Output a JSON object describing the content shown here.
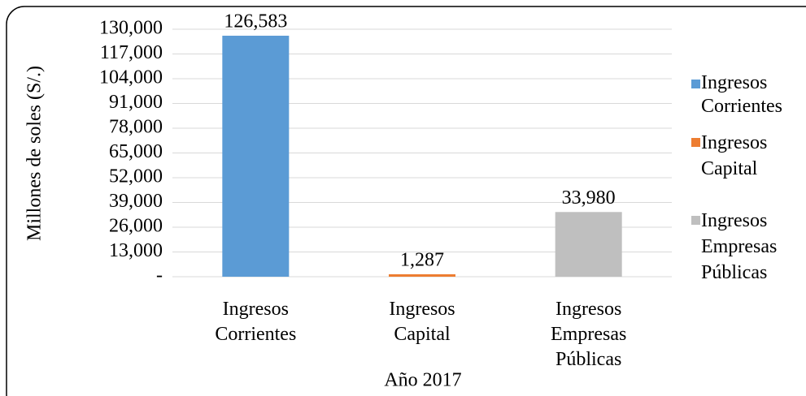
{
  "chart_data": {
    "type": "bar",
    "categories": [
      "Ingresos Corrientes",
      "Ingresos Capital",
      "Ingresos Empresas Públicas"
    ],
    "values": [
      126583,
      1287,
      33980
    ],
    "value_labels": [
      "126,583",
      "1,287",
      "33,980"
    ],
    "colors": [
      "#5b9bd5",
      "#ed7d31",
      "#bfbfbf"
    ],
    "xlabel": "Año 2017",
    "ylabel": "Millones de soles (S/.)",
    "ylim": [
      0,
      130000
    ],
    "yticks": [
      {
        "value": 0,
        "label": "-"
      },
      {
        "value": 13000,
        "label": "13,000"
      },
      {
        "value": 26000,
        "label": "26,000"
      },
      {
        "value": 39000,
        "label": "39,000"
      },
      {
        "value": 52000,
        "label": "52,000"
      },
      {
        "value": 65000,
        "label": "65,000"
      },
      {
        "value": 78000,
        "label": "78,000"
      },
      {
        "value": 91000,
        "label": "91,000"
      },
      {
        "value": 104000,
        "label": "104,000"
      },
      {
        "value": 117000,
        "label": "117,000"
      },
      {
        "value": 130000,
        "label": "130,000"
      }
    ],
    "grid": true,
    "legend": "right"
  }
}
